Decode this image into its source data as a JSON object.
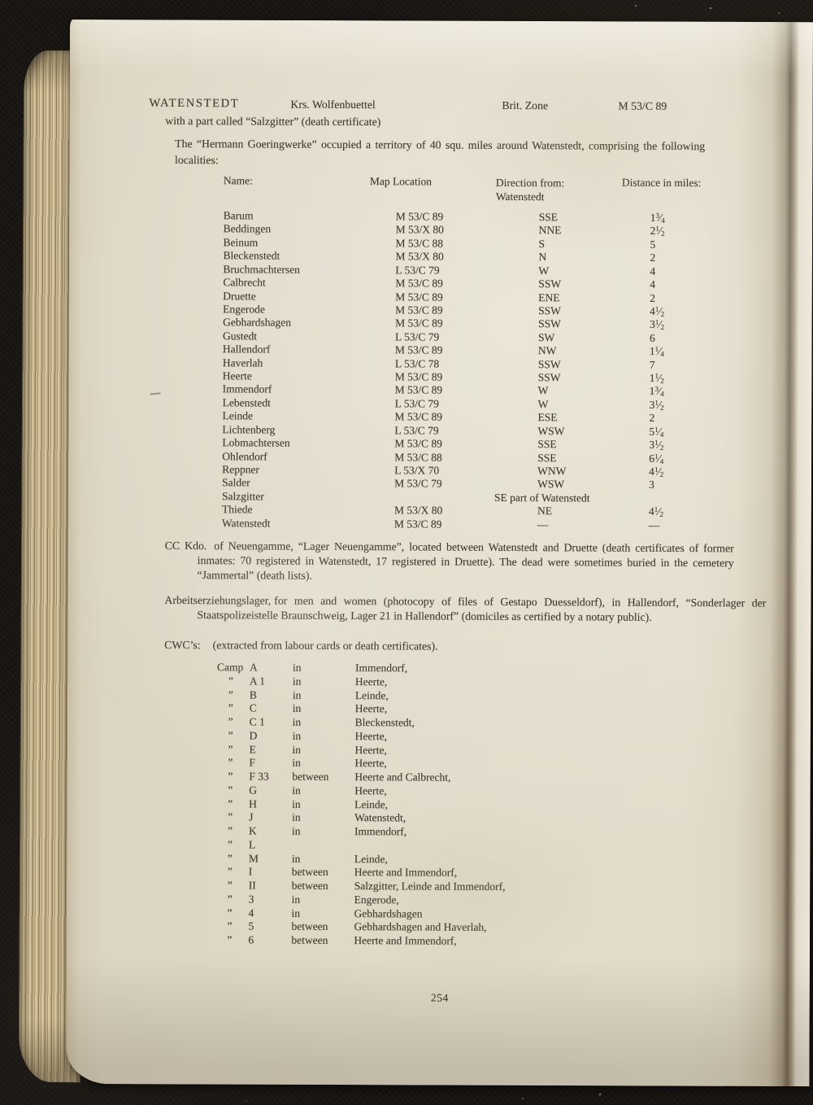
{
  "header": {
    "title": "WATENSTEDT",
    "district": "Krs. Wolfenbuettel",
    "zone": "Brit. Zone",
    "map_ref": "M 53/C 89",
    "subtitle": "with a part called “Salzgitter” (death certificate)"
  },
  "intro": {
    "text": "The “Hermann Goeringwerke” occupied a territory of 40 squ. miles around Watenstedt, comprising the following localities:"
  },
  "localities": {
    "headers": {
      "name": "Name:",
      "map": "Map Location",
      "direction1": "Direction from:",
      "direction2": "Watenstedt",
      "distance": "Distance in miles:"
    },
    "rows": [
      {
        "name": "Barum",
        "map": "M 53/C 89",
        "dir": "SSE",
        "dist": "1 3/4"
      },
      {
        "name": "Beddingen",
        "map": "M 53/X 80",
        "dir": "NNE",
        "dist": "2 1/2"
      },
      {
        "name": "Beinum",
        "map": "M 53/C 88",
        "dir": "S",
        "dist": "5"
      },
      {
        "name": "Bleckenstedt",
        "map": "M 53/X 80",
        "dir": "N",
        "dist": "2"
      },
      {
        "name": "Bruchmachtersen",
        "map": "L 53/C 79",
        "dir": "W",
        "dist": "4"
      },
      {
        "name": "Calbrecht",
        "map": "M 53/C 89",
        "dir": "SSW",
        "dist": "4"
      },
      {
        "name": "Druette",
        "map": "M 53/C 89",
        "dir": "ENE",
        "dist": "2"
      },
      {
        "name": "Engerode",
        "map": "M 53/C 89",
        "dir": "SSW",
        "dist": "4 1/2"
      },
      {
        "name": "Gebhardshagen",
        "map": "M 53/C 89",
        "dir": "SSW",
        "dist": "3 1/2"
      },
      {
        "name": "Gustedt",
        "map": "L 53/C 79",
        "dir": "SW",
        "dist": "6"
      },
      {
        "name": "Hallendorf",
        "map": "M 53/C 89",
        "dir": "NW",
        "dist": "1 1/4"
      },
      {
        "name": "Haverlah",
        "map": "L 53/C 78",
        "dir": "SSW",
        "dist": "7"
      },
      {
        "name": "Heerte",
        "map": "M 53/C 89",
        "dir": "SSW",
        "dist": "1 1/2"
      },
      {
        "name": "Immendorf",
        "map": "M 53/C 89",
        "dir": "W",
        "dist": "1 3/4"
      },
      {
        "name": "Lebenstedt",
        "map": "L 53/C 79",
        "dir": "W",
        "dist": "3 1/2"
      },
      {
        "name": "Leinde",
        "map": "M 53/C 89",
        "dir": "ESE",
        "dist": "2"
      },
      {
        "name": "Lichtenberg",
        "map": "L 53/C 79",
        "dir": "WSW",
        "dist": "5 1/4"
      },
      {
        "name": "Lobmachtersen",
        "map": "M 53/C 89",
        "dir": "SSE",
        "dist": "3 1/2"
      },
      {
        "name": "Ohlendorf",
        "map": "M 53/C 88",
        "dir": "SSE",
        "dist": "6 1/4"
      },
      {
        "name": "Reppner",
        "map": "L 53/X 70",
        "dir": "WNW",
        "dist": "4 1/2"
      },
      {
        "name": "Salder",
        "map": "M 53/C 79",
        "dir": "WSW",
        "dist": "3"
      },
      {
        "name": "Salzgitter",
        "map": "",
        "dir": "SE part of Watenstedt",
        "dist": ""
      },
      {
        "name": "Thiede",
        "map": "M 53/X 80",
        "dir": "NE",
        "dist": "4 1/2"
      },
      {
        "name": "Watenstedt",
        "map": "M 53/C 89",
        "dir": "—",
        "dist": "—"
      }
    ]
  },
  "paragraphs": {
    "cc_kdo": {
      "label": "CC Kdo.",
      "text": "of Neuengamme, “Lager Neuengamme”, located between Watenstedt and Druette (death certificates of former inmates: 70 registered in Watenstedt, 17 registered in Druette). The dead were sometimes buried in the cemetery “Jammertal” (death lists)."
    },
    "arbeitslager": {
      "label": "Arbeitserziehungslager,",
      "text": "for men and women (photocopy of files of Gestapo Duesseldorf), in Hallendorf, “Sonderlager der Staatspolizeistelle Braunschweig, Lager 21 in Hallendorf” (domiciles as certified by a notary public)."
    },
    "cwc": {
      "label": "CWC’s:",
      "text": "(extracted from labour cards or death certificates)."
    }
  },
  "camps": {
    "first_prefix": "Camp",
    "ditto_mark": "”",
    "rows": [
      {
        "prefix": "Camp",
        "id": "A",
        "rel": "in",
        "loc": "Immendorf,"
      },
      {
        "prefix": "”",
        "id": "A 1",
        "rel": "in",
        "loc": "Heerte,"
      },
      {
        "prefix": "”",
        "id": "B",
        "rel": "in",
        "loc": "Leinde,"
      },
      {
        "prefix": "”",
        "id": "C",
        "rel": "in",
        "loc": "Heerte,"
      },
      {
        "prefix": "”",
        "id": "C 1",
        "rel": "in",
        "loc": "Bleckenstedt,"
      },
      {
        "prefix": "”",
        "id": "D",
        "rel": "in",
        "loc": "Heerte,"
      },
      {
        "prefix": "”",
        "id": "E",
        "rel": "in",
        "loc": "Heerte,"
      },
      {
        "prefix": "”",
        "id": "F",
        "rel": "in",
        "loc": "Heerte,"
      },
      {
        "prefix": "”",
        "id": "F 33",
        "rel": "between",
        "loc": "Heerte and Calbrecht,"
      },
      {
        "prefix": "”",
        "id": "G",
        "rel": "in",
        "loc": "Heerte,"
      },
      {
        "prefix": "”",
        "id": "H",
        "rel": "in",
        "loc": "Leinde,"
      },
      {
        "prefix": "”",
        "id": "J",
        "rel": "in",
        "loc": "Watenstedt,"
      },
      {
        "prefix": "”",
        "id": "K",
        "rel": "in",
        "loc": "Immendorf,"
      },
      {
        "prefix": "”",
        "id": "L",
        "rel": "",
        "loc": ""
      },
      {
        "prefix": "”",
        "id": "M",
        "rel": "in",
        "loc": "Leinde,"
      },
      {
        "prefix": "”",
        "id": "I",
        "rel": "between",
        "loc": "Heerte and Immendorf,"
      },
      {
        "prefix": "”",
        "id": "II",
        "rel": "between",
        "loc": "Salzgitter, Leinde and Immendorf,"
      },
      {
        "prefix": "”",
        "id": "3",
        "rel": "in",
        "loc": "Engerode,"
      },
      {
        "prefix": "”",
        "id": "4",
        "rel": "in",
        "loc": "Gebhardshagen"
      },
      {
        "prefix": "”",
        "id": "5",
        "rel": "between",
        "loc": "Gebhardshagen and Haverlah,"
      },
      {
        "prefix": "”",
        "id": "6",
        "rel": "between",
        "loc": "Heerte and Immendorf,"
      }
    ]
  },
  "footer": {
    "page_number": "254"
  }
}
